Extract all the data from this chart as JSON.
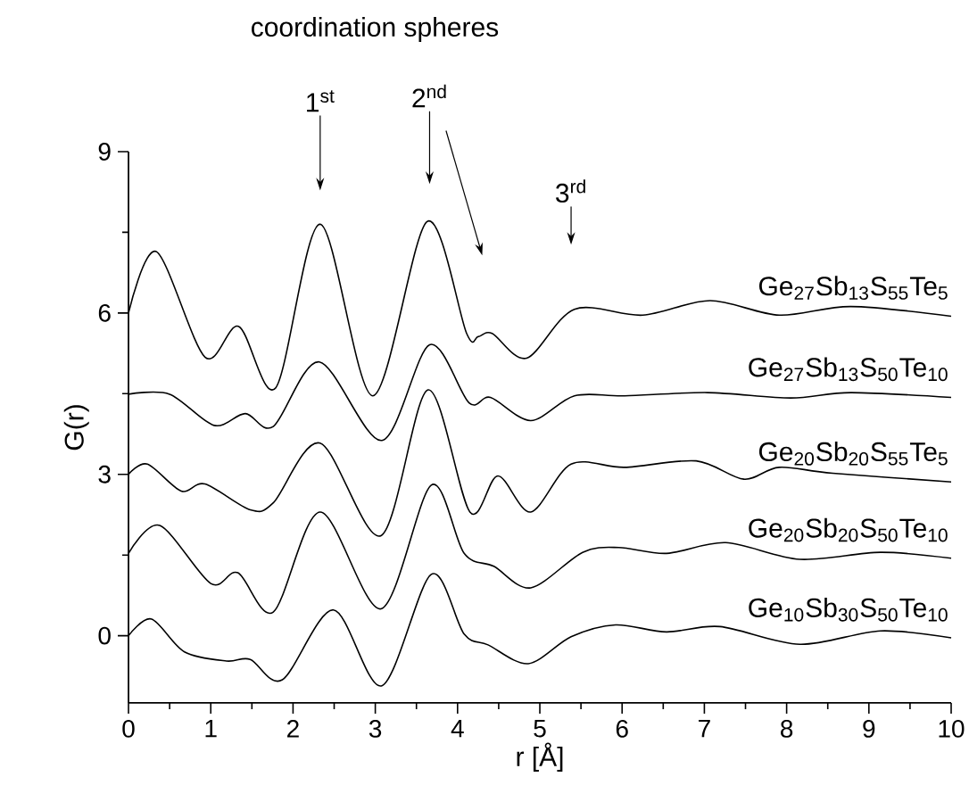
{
  "chart_data": {
    "type": "line",
    "title": "coordination spheres",
    "xlabel": "r [Å]",
    "ylabel": "G(r)",
    "xlim": [
      0,
      10
    ],
    "ylim": [
      -1.25,
      9
    ],
    "xticks": [
      0,
      1,
      2,
      3,
      4,
      5,
      6,
      7,
      8,
      9,
      10
    ],
    "yticks": [
      0,
      3,
      6,
      9
    ],
    "grid": false,
    "legend": false,
    "marker": "none",
    "line_style": "solid",
    "annotations": [
      "1$^{st}$",
      "2$^{nd}$",
      "3$^{rd}$"
    ],
    "series": [
      {
        "name": "Ge$_{27}$Sb$_{13}$S$_{55}$Te$_{5}$",
        "color": "#000000",
        "x": [
          0,
          0.34,
          0.93,
          1.34,
          1.79,
          2.33,
          2.97,
          3.63,
          4.11,
          4.25,
          4.42,
          4.84,
          5.42,
          6.25,
          7.07,
          7.91,
          8.78,
          10
        ],
        "values": [
          6.0,
          7.14,
          5.18,
          5.75,
          4.61,
          7.65,
          4.46,
          7.7,
          5.62,
          5.56,
          5.62,
          5.16,
          6.07,
          5.96,
          6.23,
          5.96,
          6.12,
          5.94
        ]
      },
      {
        "name": "Ge$_{27}$Sb$_{13}$S$_{50}$Te$_{10}$",
        "color": "#000000",
        "x": [
          0,
          0.5,
          1.04,
          1.42,
          1.76,
          2.32,
          3.08,
          3.66,
          4.14,
          4.4,
          4.89,
          5.42,
          6.03,
          7.04,
          8.05,
          8.78,
          10
        ],
        "values": [
          4.49,
          4.49,
          3.91,
          4.13,
          3.89,
          5.09,
          3.63,
          5.41,
          4.33,
          4.43,
          4.0,
          4.46,
          4.46,
          4.52,
          4.42,
          4.52,
          4.43
        ]
      },
      {
        "name": "Ge$_{20}$Sb$_{20}$S$_{55}$Te$_{5}$",
        "color": "#000000",
        "x": [
          0,
          0.23,
          0.64,
          0.93,
          1.48,
          1.76,
          2.33,
          3.07,
          3.64,
          4.15,
          4.49,
          4.89,
          5.38,
          6.03,
          6.9,
          7.48,
          7.91,
          8.56,
          10
        ],
        "values": [
          3.0,
          3.19,
          2.69,
          2.82,
          2.34,
          2.47,
          3.58,
          1.86,
          4.57,
          2.3,
          2.97,
          2.3,
          3.19,
          3.13,
          3.25,
          2.91,
          3.13,
          3.02,
          2.86
        ]
      },
      {
        "name": "Ge$_{20}$Sb$_{20}$S$_{50}$Te$_{10}$",
        "color": "#000000",
        "x": [
          0,
          0.38,
          1.0,
          1.33,
          1.76,
          2.33,
          3.07,
          3.68,
          4.08,
          4.44,
          4.89,
          5.52,
          5.96,
          6.54,
          7.26,
          8.16,
          9.14,
          10
        ],
        "values": [
          1.53,
          2.05,
          0.97,
          1.17,
          0.44,
          2.3,
          0.5,
          2.8,
          1.53,
          1.29,
          0.89,
          1.55,
          1.64,
          1.53,
          1.73,
          1.42,
          1.55,
          1.44
        ]
      },
      {
        "name": "Ge$_{10}$Sb$_{30}$S$_{50}$Te$_{10}$",
        "color": "#000000",
        "x": [
          0,
          0.28,
          0.68,
          1.19,
          1.48,
          1.87,
          2.49,
          3.08,
          3.68,
          4.08,
          4.37,
          4.86,
          5.38,
          5.92,
          6.54,
          7.19,
          8.16,
          9.14,
          10
        ],
        "values": [
          0.0,
          0.31,
          -0.3,
          -0.47,
          -0.44,
          -0.82,
          0.48,
          -0.93,
          1.14,
          0.03,
          -0.17,
          -0.52,
          -0.02,
          0.2,
          0.07,
          0.17,
          -0.16,
          0.09,
          -0.04
        ]
      }
    ]
  }
}
